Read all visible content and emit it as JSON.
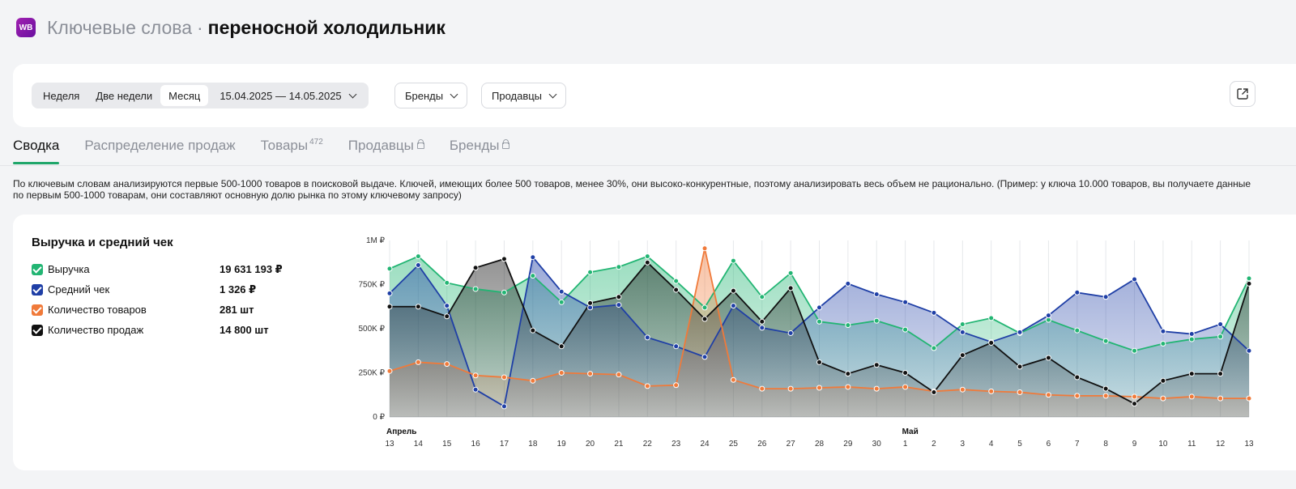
{
  "header": {
    "logo": "WB",
    "title_prefix": "Ключевые слова",
    "separator": "·",
    "keyword": "переносной холодильник"
  },
  "filters": {
    "periods": [
      "Неделя",
      "Две недели",
      "Месяц"
    ],
    "active_period": "Месяц",
    "date_range": "15.04.2025 — 14.05.2025",
    "brands_label": "Бренды",
    "sellers_label": "Продавцы",
    "export_icon": "export-icon"
  },
  "tabs": {
    "summary": "Сводка",
    "distribution": "Распределение продаж",
    "products": "Товары",
    "products_count": "472",
    "sellers": "Продавцы",
    "brands": "Бренды"
  },
  "note": "По ключевым словам анализируются первые 500-1000 товаров в поисковой выдаче. Ключей, имеющих более 500 товаров, менее 30%, они высоко-конкурентные, поэтому анализировать весь объем не рационально. (Пример: у ключа 10.000 товаров, вы получаете данные по первым 500-1000 товарам, они составляют основную долю рынка по этому ключевому запросу)",
  "summary": {
    "title": "Выручка и средний чек",
    "legend": [
      {
        "label": "Выручка",
        "value": "19 631 193 ₽",
        "color": "#22b573"
      },
      {
        "label": "Средний чек",
        "value": "1 326 ₽",
        "color": "#1f3fa6"
      },
      {
        "label": "Количество товаров",
        "value": "281 шт",
        "color": "#f07a3a"
      },
      {
        "label": "Количество продаж",
        "value": "14 800 шт",
        "color": "#111111"
      }
    ]
  },
  "chart_data": {
    "type": "area",
    "y_ticks": [
      "0 ₽",
      "250K ₽",
      "500K ₽",
      "750K ₽",
      "1M ₽"
    ],
    "ylim": [
      0,
      1000000
    ],
    "month_labels": [
      {
        "index": 0,
        "label": "Апрель"
      },
      {
        "index": 18,
        "label": "Май"
      }
    ],
    "x": [
      "13",
      "14",
      "15",
      "16",
      "17",
      "18",
      "19",
      "20",
      "21",
      "22",
      "23",
      "24",
      "25",
      "26",
      "27",
      "28",
      "29",
      "30",
      "1",
      "2",
      "3",
      "4",
      "5",
      "6",
      "7",
      "8",
      "9",
      "10",
      "11",
      "12",
      "13"
    ],
    "series": [
      {
        "name": "Выручка",
        "color": "#22b573",
        "values": [
          840000,
          910000,
          760000,
          725000,
          705000,
          800000,
          650000,
          820000,
          850000,
          910000,
          770000,
          620000,
          885000,
          680000,
          815000,
          540000,
          520000,
          545000,
          495000,
          390000,
          525000,
          560000,
          475000,
          550000,
          490000,
          430000,
          375000,
          415000,
          440000,
          455000,
          785000
        ]
      },
      {
        "name": "Средний чек",
        "color": "#1f3fa6",
        "values": [
          700000,
          860000,
          630000,
          155000,
          60000,
          905000,
          710000,
          620000,
          635000,
          450000,
          400000,
          340000,
          630000,
          505000,
          475000,
          620000,
          755000,
          695000,
          650000,
          590000,
          480000,
          425000,
          480000,
          575000,
          705000,
          680000,
          780000,
          485000,
          470000,
          525000,
          375000
        ]
      },
      {
        "name": "Количество товаров",
        "color": "#f07a3a",
        "values": [
          260000,
          310000,
          300000,
          235000,
          225000,
          205000,
          250000,
          245000,
          240000,
          175000,
          180000,
          955000,
          210000,
          160000,
          160000,
          165000,
          170000,
          160000,
          170000,
          145000,
          155000,
          145000,
          140000,
          125000,
          120000,
          120000,
          115000,
          105000,
          115000,
          105000,
          105000
        ]
      },
      {
        "name": "Количество продаж",
        "color": "#111111",
        "values": [
          625000,
          625000,
          570000,
          845000,
          895000,
          490000,
          400000,
          645000,
          680000,
          875000,
          720000,
          555000,
          715000,
          540000,
          730000,
          310000,
          245000,
          295000,
          250000,
          140000,
          350000,
          420000,
          285000,
          335000,
          225000,
          160000,
          75000,
          205000,
          245000,
          245000,
          755000
        ]
      }
    ]
  }
}
